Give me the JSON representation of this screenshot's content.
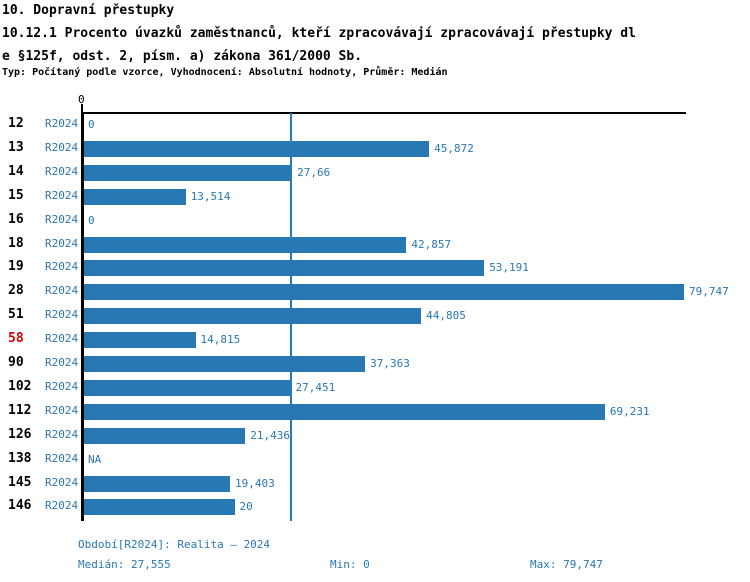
{
  "header": {
    "title": "10. Dopravní přestupky",
    "subtitle_line1": "10.12.1 Procento úvazků zaměstnanců, kteří zpracovávají zpracovávají přestupky dl",
    "subtitle_line2": "e §125f, odst. 2, písm. a) zákona 361/2000 Sb.",
    "meta": "Typ: Počítaný podle vzorce, Vyhodnocení: Absolutní hodnoty, Průměr: Medián"
  },
  "chart_data": {
    "type": "bar",
    "orientation": "horizontal",
    "title": "10.12.1 Procento úvazků zaměstnanců, kteří zpracovávají zpracovávají přestupky dle §125f, odst. 2, písm. a) zákona 361/2000 Sb.",
    "axis_zero_tick_label": "0",
    "series_name": "R2024",
    "categories": [
      "12",
      "13",
      "14",
      "15",
      "16",
      "18",
      "19",
      "28",
      "51",
      "58",
      "90",
      "102",
      "112",
      "126",
      "138",
      "145",
      "146"
    ],
    "values": [
      0,
      45.872,
      27.66,
      13.514,
      0,
      42.857,
      53.191,
      79.747,
      44.805,
      14.815,
      37.363,
      27.451,
      69.231,
      21.436,
      null,
      19.403,
      20
    ],
    "value_labels": [
      "0",
      "45,872",
      "27,66",
      "13,514",
      "0",
      "42,857",
      "53,191",
      "79,747",
      "44,805",
      "14,815",
      "37,363",
      "27,451",
      "69,231",
      "21,436",
      "NA",
      "19,403",
      "20"
    ],
    "highlighted_category": "58",
    "median_value": 27.555,
    "xlim": [
      0,
      79.747
    ],
    "grid": false,
    "legend_position": "none",
    "colors": {
      "bar": "#2878b4",
      "text_blue": "#2878b4",
      "median_line": "#2878b4",
      "highlight_label": "#dd0000",
      "axis": "#000000"
    }
  },
  "footer": {
    "period": "Období[R2024]: Realita – 2024",
    "median": "Medián: 27,555",
    "min": "Min: 0",
    "max": "Max: 79,747"
  }
}
